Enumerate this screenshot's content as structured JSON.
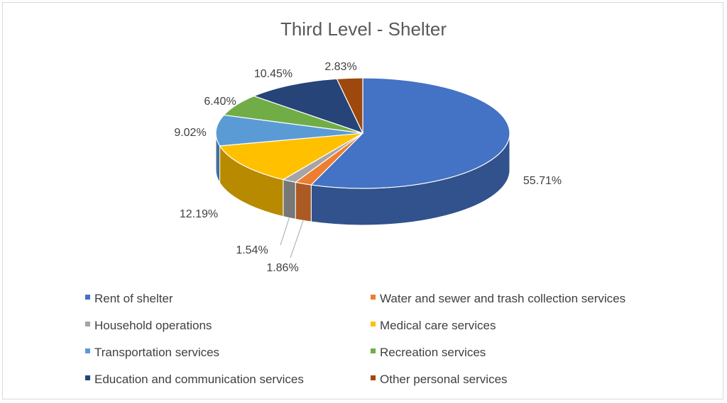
{
  "chart_data": {
    "type": "pie",
    "title": "Third Level - Shelter",
    "categories": [
      "Rent of shelter",
      "Water and sewer and trash collection services",
      "Household operations",
      "Medical care services",
      "Transportation services",
      "Recreation services",
      "Education and communication services",
      "Other personal services"
    ],
    "values": [
      55.71,
      1.86,
      1.54,
      12.19,
      9.02,
      6.4,
      10.45,
      2.83
    ],
    "labels": [
      "55.71%",
      "1.86%",
      "1.54%",
      "12.19%",
      "9.02%",
      "6.40%",
      "10.45%",
      "2.83%"
    ],
    "colors": [
      "#4472C4",
      "#ED7D31",
      "#A5A5A5",
      "#FFC000",
      "#5B9BD5",
      "#70AD47",
      "#264478",
      "#9E480E"
    ],
    "legend_position": "bottom",
    "style": "3d"
  }
}
